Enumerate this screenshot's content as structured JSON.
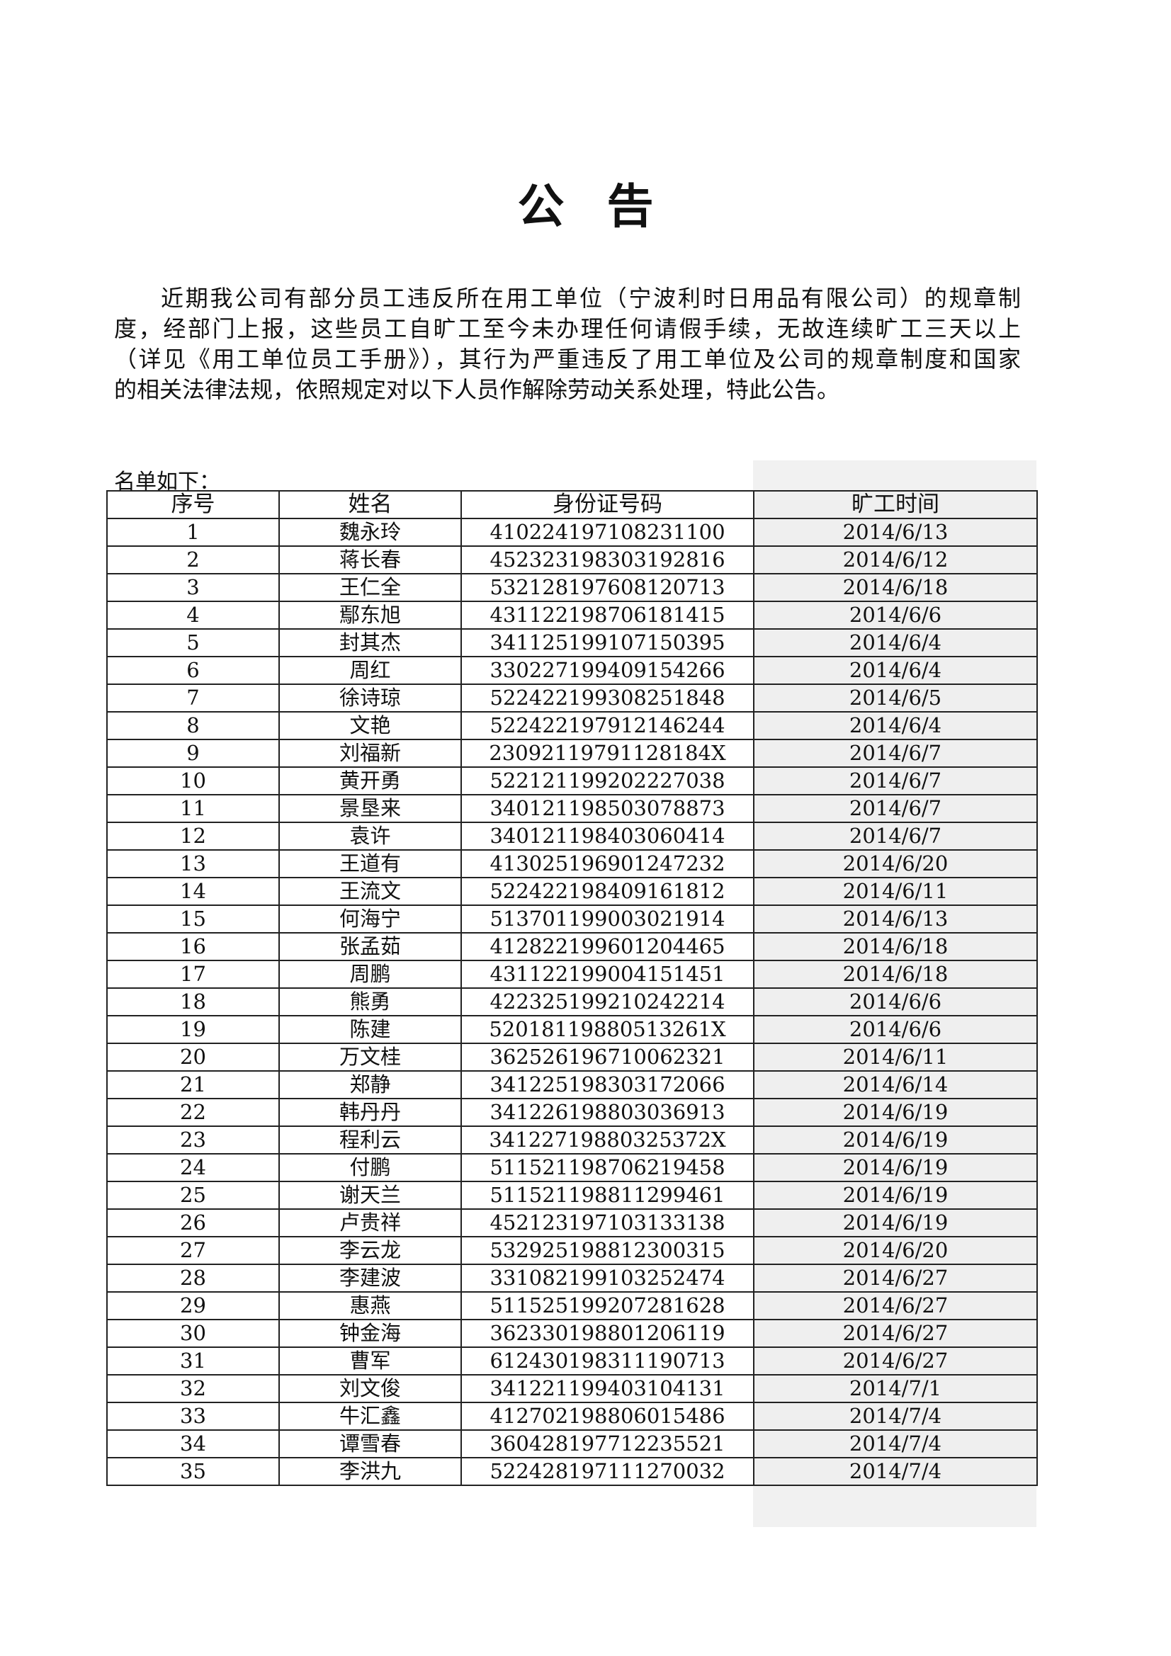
{
  "title": "公告",
  "paragraph_lines": [
    "近期我公司有部分员工违反所在用工单位（宁波利时日用品有限公司）的规章制",
    "度，经部门上报，这些员工自旷工至今未办理任何请假手续，无故连续旷工三天以上",
    "（详见《用工单位员工手册》），其行为严重违反了用工单位及公司的规章制度和国家",
    "的相关法律法规，依照规定对以下人员作解除劳动关系处理，特此公告。"
  ],
  "list_label": "名单如下：",
  "table": {
    "headers": [
      "序号",
      "姓名",
      "身份证号码",
      "旷工时间"
    ],
    "rows": [
      [
        "1",
        "魏永玲",
        "410224197108231100",
        "2014/6/13"
      ],
      [
        "2",
        "蒋长春",
        "452323198303192816",
        "2014/6/12"
      ],
      [
        "3",
        "王仁全",
        "532128197608120713",
        "2014/6/18"
      ],
      [
        "4",
        "鄢东旭",
        "431122198706181415",
        "2014/6/6"
      ],
      [
        "5",
        "封其杰",
        "341125199107150395",
        "2014/6/4"
      ],
      [
        "6",
        "周红",
        "330227199409154266",
        "2014/6/4"
      ],
      [
        "7",
        "徐诗琼",
        "522422199308251848",
        "2014/6/5"
      ],
      [
        "8",
        "文艳",
        "522422197912146244",
        "2014/6/4"
      ],
      [
        "9",
        "刘福新",
        "23092119791128184X",
        "2014/6/7"
      ],
      [
        "10",
        "黄开勇",
        "522121199202227038",
        "2014/6/7"
      ],
      [
        "11",
        "景垦来",
        "340121198503078873",
        "2014/6/7"
      ],
      [
        "12",
        "袁许",
        "340121198403060414",
        "2014/6/7"
      ],
      [
        "13",
        "王道有",
        "413025196901247232",
        "2014/6/20"
      ],
      [
        "14",
        "王流文",
        "522422198409161812",
        "2014/6/11"
      ],
      [
        "15",
        "何海宁",
        "513701199003021914",
        "2014/6/13"
      ],
      [
        "16",
        "张孟茹",
        "412822199601204465",
        "2014/6/18"
      ],
      [
        "17",
        "周鹏",
        "431122199004151451",
        "2014/6/18"
      ],
      [
        "18",
        "熊勇",
        "422325199210242214",
        "2014/6/6"
      ],
      [
        "19",
        "陈建",
        "52018119880513261X",
        "2014/6/6"
      ],
      [
        "20",
        "万文桂",
        "362526196710062321",
        "2014/6/11"
      ],
      [
        "21",
        "郑静",
        "341225198303172066",
        "2014/6/14"
      ],
      [
        "22",
        "韩丹丹",
        "341226198803036913",
        "2014/6/19"
      ],
      [
        "23",
        "程利云",
        "34122719880325372X",
        "2014/6/19"
      ],
      [
        "24",
        "付鹏",
        "511521198706219458",
        "2014/6/19"
      ],
      [
        "25",
        "谢天兰",
        "511521198811299461",
        "2014/6/19"
      ],
      [
        "26",
        "卢贵祥",
        "452123197103133138",
        "2014/6/19"
      ],
      [
        "27",
        "李云龙",
        "532925198812300315",
        "2014/6/20"
      ],
      [
        "28",
        "李建波",
        "331082199103252474",
        "2014/6/27"
      ],
      [
        "29",
        "惠燕",
        "511525199207281628",
        "2014/6/27"
      ],
      [
        "30",
        "钟金海",
        "362330198801206119",
        "2014/6/27"
      ],
      [
        "31",
        "曹军",
        "612430198311190713",
        "2014/6/27"
      ],
      [
        "32",
        "刘文俊",
        "341221199403104131",
        "2014/7/1"
      ],
      [
        "33",
        "牛汇鑫",
        "412702198806015486",
        "2014/7/4"
      ],
      [
        "34",
        "谭雪春",
        "360428197712235521",
        "2014/7/4"
      ],
      [
        "35",
        "李洪九",
        "522428197111270032",
        "2014/7/4"
      ]
    ]
  }
}
